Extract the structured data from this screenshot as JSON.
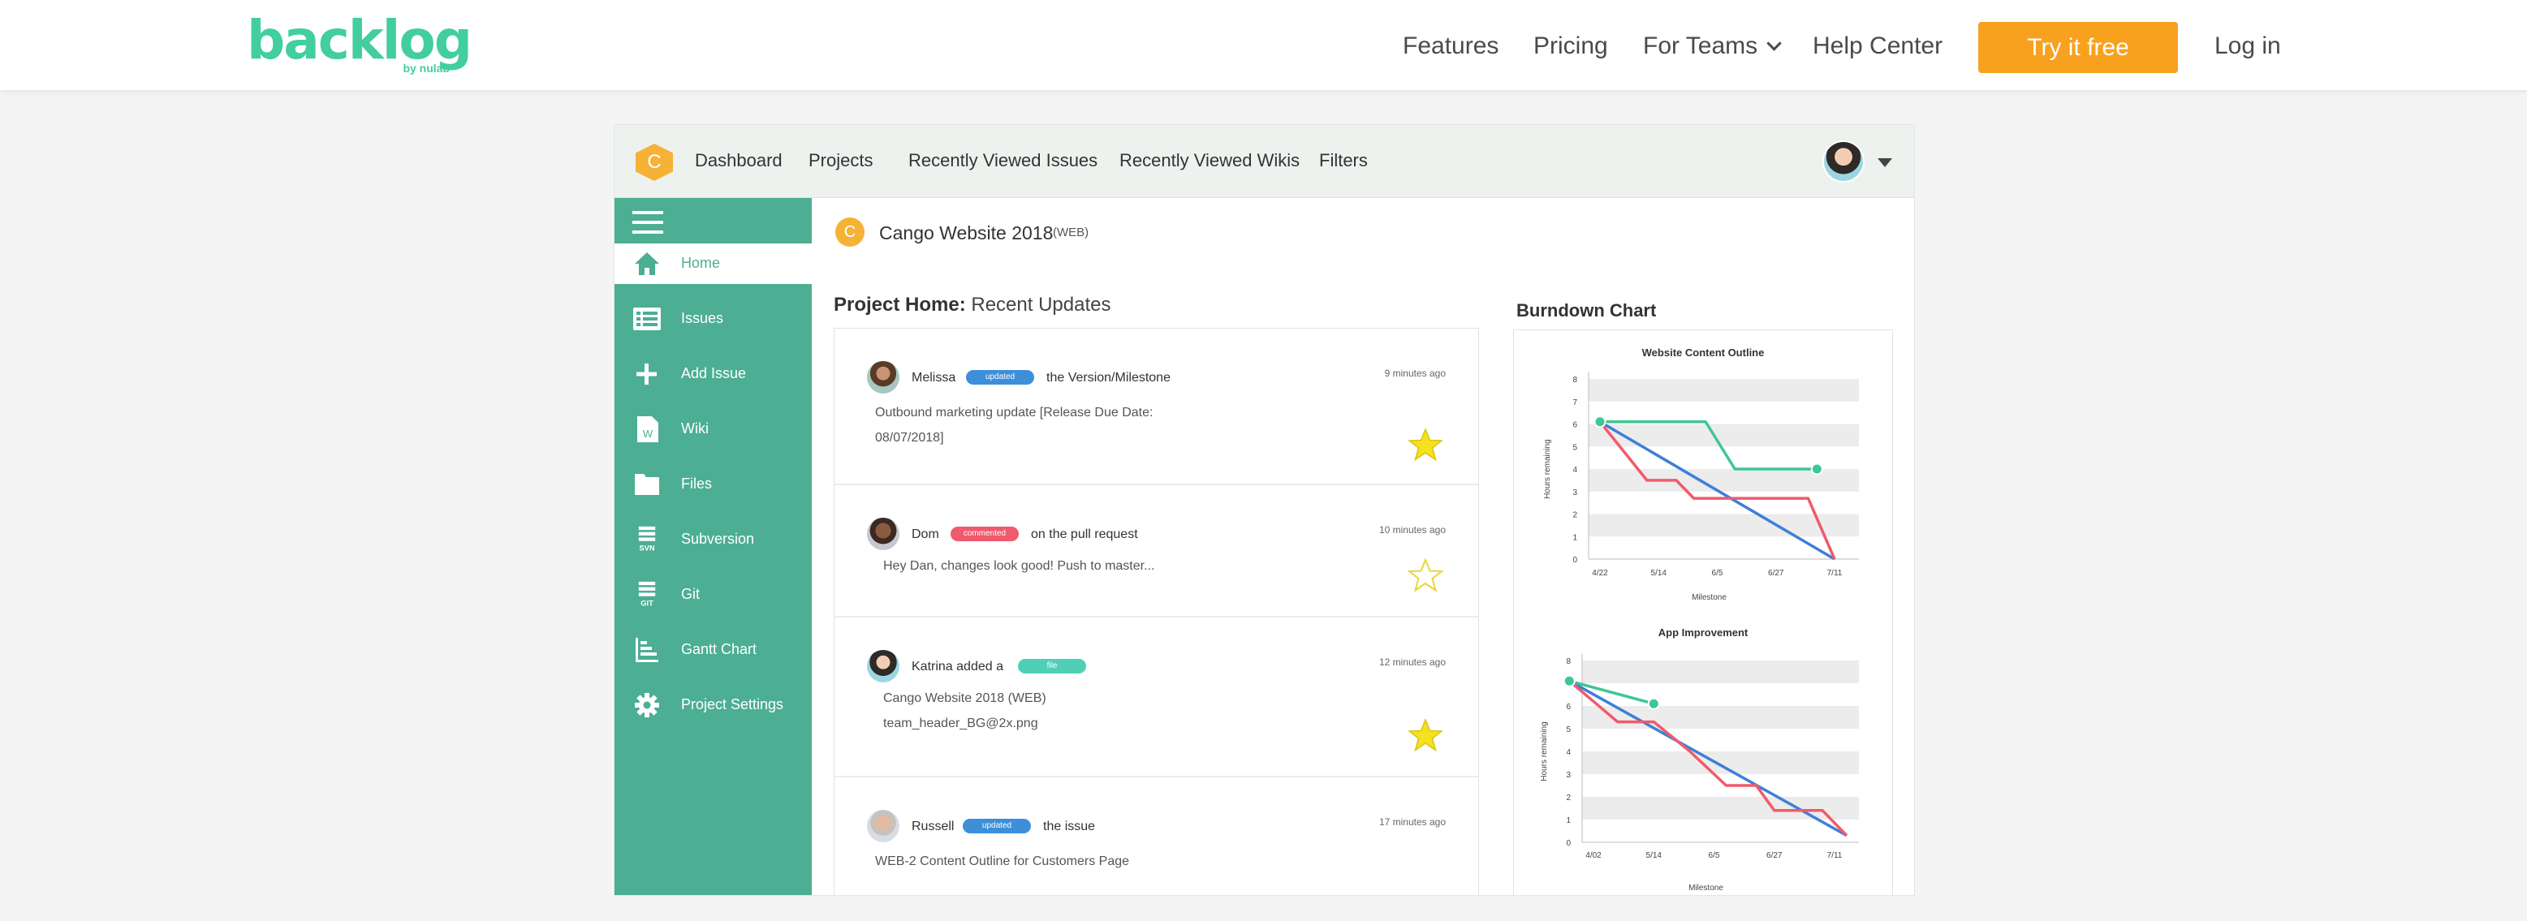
{
  "site_nav": {
    "brand": "backlog",
    "brand_by": "by nulab",
    "links": [
      "Features",
      "Pricing",
      "For Teams",
      "Help Center"
    ],
    "cta": "Try it free",
    "login": "Log in",
    "colors": {
      "brand": "#42ce9f",
      "cta": "#f8a11e"
    }
  },
  "app": {
    "space_initial": "C",
    "tabs": [
      "Dashboard",
      "Projects",
      "Recently Viewed Issues",
      "Recently Viewed Wikis",
      "Filters"
    ],
    "sidebar": {
      "color": "#4cae92",
      "items": [
        {
          "label": "Home",
          "icon": "home-icon",
          "active": true
        },
        {
          "label": "Issues",
          "icon": "issues-list-icon"
        },
        {
          "label": "Add Issue",
          "icon": "plus-icon"
        },
        {
          "label": "Wiki",
          "icon": "wiki-page-icon"
        },
        {
          "label": "Files",
          "icon": "folder-icon"
        },
        {
          "label": "Subversion",
          "icon": "svn-icon"
        },
        {
          "label": "Git",
          "icon": "git-icon"
        },
        {
          "label": "Gantt Chart",
          "icon": "gantt-chart-icon"
        },
        {
          "label": "Project Settings",
          "icon": "gear-icon"
        }
      ],
      "svn_tag": "SVN",
      "git_tag": "GIT"
    },
    "project": {
      "initial": "C",
      "name": "Cango Website 2018",
      "key": "(WEB)"
    },
    "recent": {
      "title_bold": "Project Home:",
      "title_rest": " Recent Updates",
      "items": [
        {
          "user": "Melissa",
          "badge": "updated",
          "action": "the Version/Milestone",
          "time": "9 minutes ago",
          "body": [
            "Outbound marketing update [Release Due Date:",
            "08/07/2018]"
          ],
          "starred": true
        },
        {
          "user": "Dom",
          "badge": "commented",
          "action": "on the pull request",
          "time": "10 minutes ago",
          "body": [
            "Hey Dan, changes look good!  Push to master..."
          ],
          "starred": false
        },
        {
          "user": "Katrina added a",
          "badge": "file",
          "action": "",
          "time": "12 minutes ago",
          "body": [
            "Cango Website 2018 (WEB)",
            "team_header_BG@2x.png"
          ],
          "starred": true
        },
        {
          "user": "Russell",
          "badge": "updated",
          "action": "the issue",
          "time": "17 minutes ago",
          "body": [
            "WEB-2 Content Outline for Customers Page"
          ],
          "starred": false
        }
      ]
    },
    "burndown_title": "Burndown Chart"
  },
  "chart_data": [
    {
      "type": "line",
      "title": "Website Content Outline",
      "xlabel": "Milestone",
      "ylabel": "Hours remaining",
      "x_ticks": [
        "4/22",
        "5/14",
        "6/5",
        "6/27",
        "7/11"
      ],
      "ylim": [
        0,
        8
      ],
      "y_ticks": [
        0,
        1,
        2,
        3,
        4,
        5,
        6,
        7,
        8
      ],
      "series": [
        {
          "color": "#3f7fd8",
          "points": [
            [
              0.0,
              6.1
            ],
            [
              4.0,
              0.0
            ]
          ]
        },
        {
          "color": "#ef5b6c",
          "points": [
            [
              0.0,
              6.1
            ],
            [
              0.8,
              3.5
            ],
            [
              1.3,
              3.5
            ],
            [
              1.6,
              2.7
            ],
            [
              2.1,
              2.7
            ],
            [
              3.55,
              2.7
            ],
            [
              4.0,
              0.0
            ]
          ]
        },
        {
          "color": "#3ec694",
          "points": [
            [
              0.0,
              6.1
            ],
            [
              1.8,
              6.1
            ],
            [
              2.3,
              4.0
            ],
            [
              3.7,
              4.0
            ]
          ],
          "markers": [
            0,
            3
          ]
        }
      ]
    },
    {
      "type": "line",
      "title": "App Improvement",
      "xlabel": "Milestone",
      "ylabel": "Hours remaining",
      "x_ticks": [
        "4/02",
        "5/14",
        "6/5",
        "6/27",
        "7/11"
      ],
      "ylim": [
        0,
        8
      ],
      "y_ticks": [
        0,
        1,
        2,
        3,
        4,
        5,
        6,
        7,
        8
      ],
      "series": [
        {
          "color": "#3f7fd8",
          "points": [
            [
              -0.4,
              7.1
            ],
            [
              4.2,
              0.3
            ]
          ]
        },
        {
          "color": "#ef5b6c",
          "points": [
            [
              -0.4,
              7.1
            ],
            [
              0.4,
              5.3
            ],
            [
              1.0,
              5.3
            ],
            [
              1.6,
              4.0
            ],
            [
              2.2,
              2.5
            ],
            [
              2.7,
              2.5
            ],
            [
              3.0,
              1.4
            ],
            [
              3.8,
              1.4
            ],
            [
              4.2,
              0.3
            ]
          ]
        },
        {
          "color": "#3ec694",
          "points": [
            [
              -0.4,
              7.1
            ],
            [
              1.0,
              6.1
            ]
          ],
          "markers": [
            0,
            1
          ]
        }
      ]
    }
  ]
}
